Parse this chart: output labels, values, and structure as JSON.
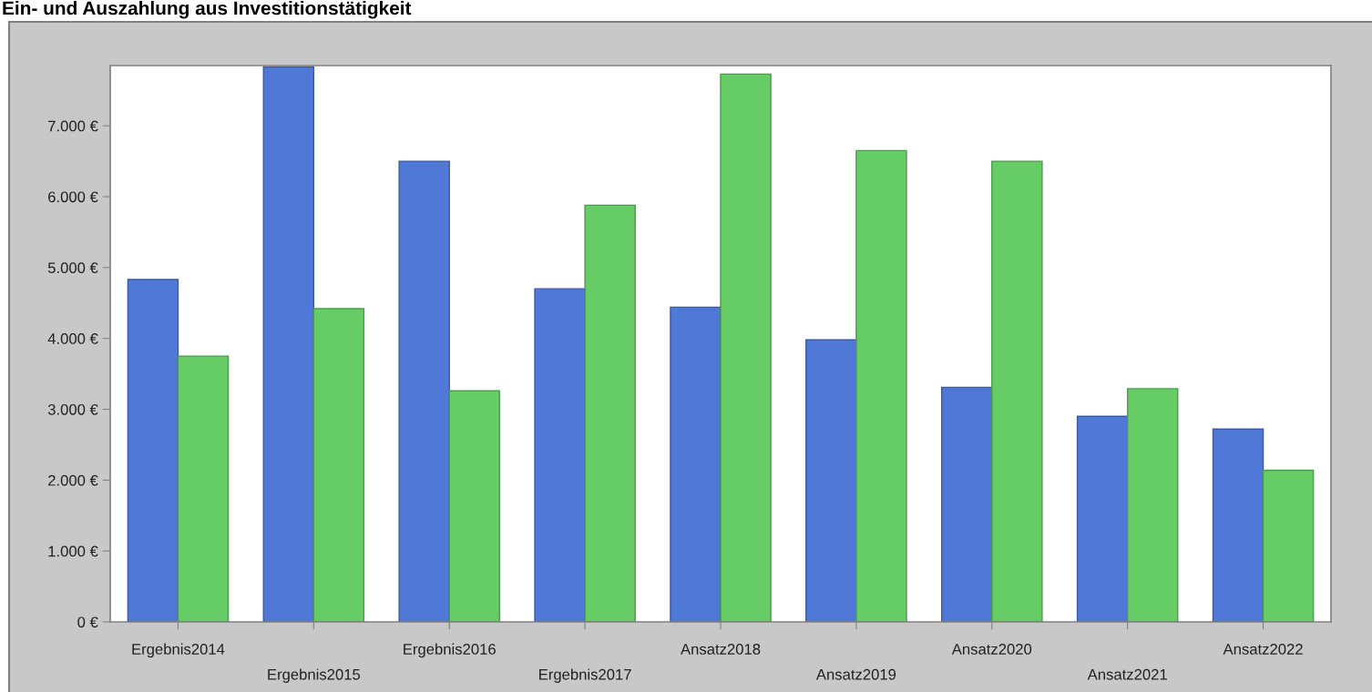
{
  "chart_data": {
    "type": "bar",
    "title": "Ein- und Auszahlung aus Investitionstätigkeit",
    "categories": [
      "Ergebnis2014",
      "Ergebnis2015",
      "Ergebnis2016",
      "Ergebnis2017",
      "Ansatz2018",
      "Ansatz2019",
      "Ansatz2020",
      "Ansatz2021",
      "Ansatz2022"
    ],
    "series": [
      {
        "color": "#5078d6",
        "values": [
          4830,
          7830,
          6500,
          4700,
          4440,
          3980,
          3310,
          2900,
          2720
        ]
      },
      {
        "color": "#66cc66",
        "values": [
          3750,
          4420,
          3260,
          5880,
          7730,
          6650,
          6500,
          3290,
          2140
        ]
      }
    ],
    "ylim": [
      0,
      7850
    ],
    "yticks": [
      {
        "value": 0,
        "label": "0 €"
      },
      {
        "value": 1000,
        "label": "1.000 €"
      },
      {
        "value": 2000,
        "label": "2.000 €"
      },
      {
        "value": 3000,
        "label": "3.000 €"
      },
      {
        "value": 4000,
        "label": "4.000 €"
      },
      {
        "value": 5000,
        "label": "5.000 €"
      },
      {
        "value": 6000,
        "label": "6.000 €"
      },
      {
        "value": 7000,
        "label": "7.000 €"
      }
    ]
  }
}
